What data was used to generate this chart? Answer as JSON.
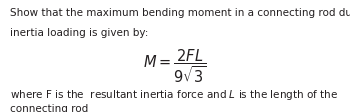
{
  "background_color": "#ffffff",
  "line1": "Show that the maximum bending moment in a connecting rod due to",
  "line2": "inertia loading is given by:",
  "footer_line1": "where F is the  resultant inertia force and $\\mathit{L}$ is the length of the",
  "footer_line2": "connecting rod",
  "text_color": "#231f20",
  "font_size_body": 7.5,
  "font_size_formula": 10.5,
  "font_size_footer": 7.5
}
